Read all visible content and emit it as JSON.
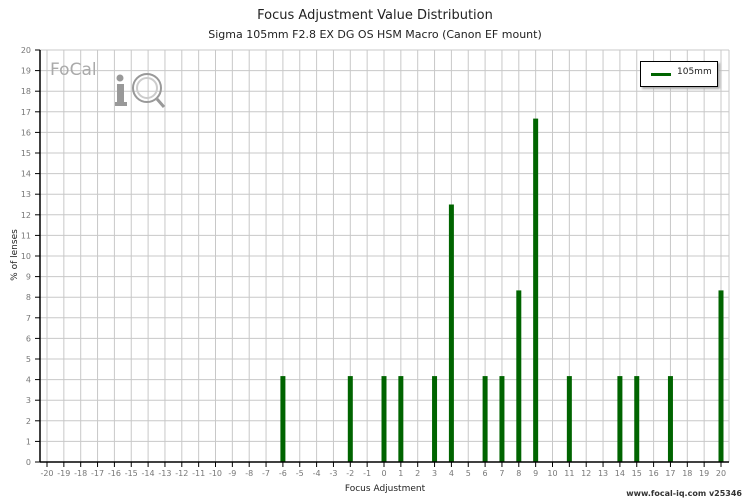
{
  "header": {
    "title": "Focus Adjustment Value Distribution",
    "subtitle": "Sigma 105mm F2.8 EX DG OS HSM Macro (Canon EF mount)"
  },
  "legend": {
    "label": "105mm",
    "color": "#006400"
  },
  "axes": {
    "xlabel": "Focus Adjustment",
    "ylabel": "% of lenses"
  },
  "logo": {
    "text": "FoCal",
    "mark": "iQ"
  },
  "credit": "www.focal-iq.com  v25346",
  "colors": {
    "bar": "#006400",
    "grid": "#c8c8c8",
    "axis": "#000000",
    "tick_text": "#777777"
  },
  "chart_data": {
    "type": "bar",
    "title": "Focus Adjustment Value Distribution",
    "subtitle": "Sigma 105mm F2.8 EX DG OS HSM Macro (Canon EF mount)",
    "xlabel": "Focus Adjustment",
    "ylabel": "% of lenses",
    "xlim": [
      -20,
      20
    ],
    "ylim": [
      0,
      20
    ],
    "grid": true,
    "legend_position": "top-right",
    "categories": [
      -20,
      -19,
      -18,
      -17,
      -16,
      -15,
      -14,
      -13,
      -12,
      -11,
      -10,
      -9,
      -8,
      -7,
      -6,
      -5,
      -4,
      -3,
      -2,
      -1,
      0,
      1,
      2,
      3,
      4,
      5,
      6,
      7,
      8,
      9,
      10,
      11,
      12,
      13,
      14,
      15,
      16,
      17,
      18,
      19,
      20
    ],
    "series": [
      {
        "name": "105mm",
        "points": [
          {
            "x": -6,
            "y": 4.17
          },
          {
            "x": -2,
            "y": 4.17
          },
          {
            "x": 0,
            "y": 4.17
          },
          {
            "x": 1,
            "y": 4.17
          },
          {
            "x": 3,
            "y": 4.17
          },
          {
            "x": 4,
            "y": 12.5
          },
          {
            "x": 6,
            "y": 4.17
          },
          {
            "x": 7,
            "y": 4.17
          },
          {
            "x": 8,
            "y": 8.33
          },
          {
            "x": 9,
            "y": 16.67
          },
          {
            "x": 11,
            "y": 4.17
          },
          {
            "x": 14,
            "y": 4.17
          },
          {
            "x": 15,
            "y": 4.17
          },
          {
            "x": 17,
            "y": 4.17
          },
          {
            "x": 20,
            "y": 8.33
          }
        ]
      }
    ]
  }
}
